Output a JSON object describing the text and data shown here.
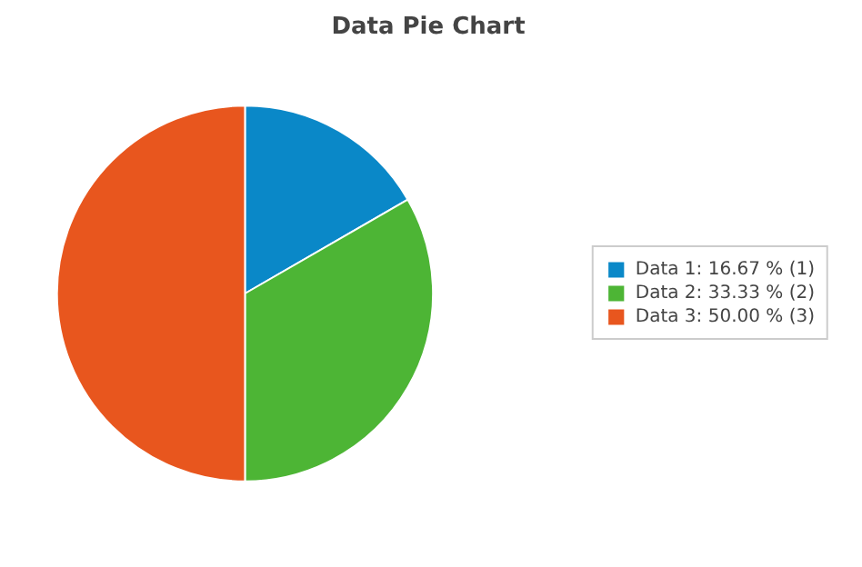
{
  "chart_data": {
    "type": "pie",
    "title": "Data Pie Chart",
    "categories": [
      "Data 1: 16.67 % (1)",
      "Data 2: 33.33 % (2)",
      "Data 3: 50.00 % (3)"
    ],
    "values": [
      1,
      2,
      3
    ],
    "colors": [
      "#0a88c8",
      "#4db535",
      "#e8561e"
    ],
    "legend": "right"
  }
}
